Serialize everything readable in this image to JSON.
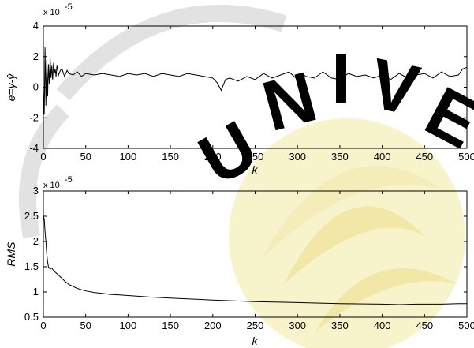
{
  "watermark": {
    "text": "UNIVERSITAS JEMBER",
    "colors": {
      "gray": "#d8d8d8",
      "yellow": "#f7f2c6",
      "gold": "#f1e59d"
    }
  },
  "chart_data": [
    {
      "type": "line",
      "id": "error-plot",
      "ylabel": "e=y-ŷ",
      "xlabel": "k",
      "exponent_base": "x 10",
      "exponent_power": "-5",
      "xlim": [
        0,
        500
      ],
      "ylim": [
        -4,
        4
      ],
      "xticks": [
        "0",
        "50",
        "100",
        "150",
        "200",
        "250",
        "300",
        "350",
        "400",
        "450",
        "500"
      ],
      "yticks": [
        "4",
        "2",
        "0",
        "-2",
        "-4"
      ],
      "grid": false,
      "line_color": "#000000",
      "series": [
        {
          "x": [
            0,
            1,
            2,
            3,
            4,
            5,
            6,
            7,
            8,
            9,
            10,
            11,
            12,
            13,
            14,
            15,
            16,
            18,
            20,
            22,
            25,
            28,
            30,
            35,
            40,
            45,
            50,
            60,
            70,
            80,
            90,
            100,
            110,
            120,
            130,
            140,
            150,
            160,
            170,
            180,
            190,
            200,
            205,
            210,
            215,
            220,
            230,
            240,
            250,
            260,
            270,
            280,
            290,
            300,
            305,
            310,
            320,
            330,
            340,
            350,
            360,
            370,
            380,
            390,
            400,
            410,
            420,
            430,
            440,
            450,
            460,
            470,
            480,
            490,
            495,
            500
          ],
          "y": [
            0,
            -1.8,
            2.6,
            -1.2,
            1.8,
            -0.6,
            1.5,
            0.2,
            1.9,
            0.6,
            1.4,
            0.5,
            1.6,
            0.9,
            1.2,
            0.7,
            1.4,
            0.8,
            1.1,
            1.2,
            0.7,
            1.1,
            0.9,
            0.8,
            1.0,
            0.7,
            0.9,
            0.8,
            0.9,
            0.8,
            0.7,
            0.9,
            0.8,
            0.9,
            0.7,
            0.9,
            0.8,
            0.7,
            0.9,
            0.8,
            0.7,
            0.6,
            0.3,
            -0.2,
            0.5,
            0.6,
            0.4,
            0.7,
            0.5,
            0.9,
            0.6,
            0.8,
            1.0,
            0.5,
            0.9,
            0.7,
            0.6,
            1.0,
            0.6,
            0.5,
            0.9,
            0.7,
            0.8,
            0.6,
            0.8,
            0.5,
            0.9,
            0.6,
            0.8,
            0.9,
            0.6,
            1.0,
            0.7,
            0.8,
            1.2,
            1.3
          ]
        }
      ]
    },
    {
      "type": "line",
      "id": "rms-plot",
      "ylabel": "RMS",
      "xlabel": "k",
      "exponent_base": "x 10",
      "exponent_power": "-5",
      "xlim": [
        0,
        500
      ],
      "ylim": [
        0.5,
        3
      ],
      "xticks": [
        "0",
        "50",
        "100",
        "150",
        "200",
        "250",
        "300",
        "350",
        "400",
        "450",
        "500"
      ],
      "yticks": [
        "3",
        "2.5",
        "2",
        "1.5",
        "1",
        "0.5"
      ],
      "grid": false,
      "line_color": "#000000",
      "series": [
        {
          "x": [
            0,
            1,
            2,
            3,
            4,
            5,
            6,
            8,
            10,
            12,
            15,
            20,
            25,
            30,
            40,
            50,
            60,
            70,
            80,
            90,
            100,
            125,
            150,
            175,
            200,
            250,
            300,
            350,
            400,
            420,
            440,
            450,
            470,
            490,
            500
          ],
          "y": [
            2.5,
            2.45,
            2.2,
            2.0,
            1.75,
            1.6,
            1.5,
            1.45,
            1.48,
            1.42,
            1.38,
            1.3,
            1.22,
            1.15,
            1.07,
            1.02,
            0.99,
            0.97,
            0.95,
            0.94,
            0.93,
            0.9,
            0.88,
            0.86,
            0.84,
            0.81,
            0.79,
            0.77,
            0.76,
            0.75,
            0.76,
            0.76,
            0.76,
            0.77,
            0.77
          ]
        }
      ]
    }
  ]
}
